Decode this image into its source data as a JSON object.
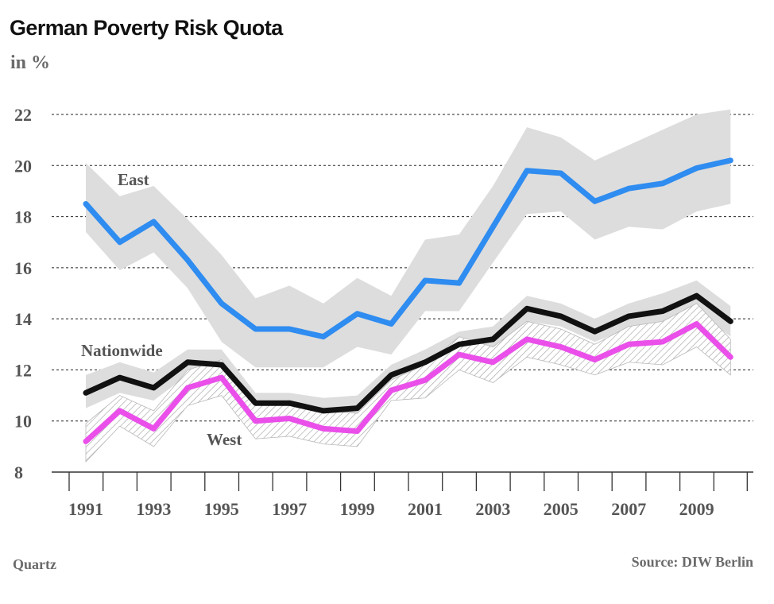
{
  "header": {
    "title": "German Poverty Risk Quota",
    "subtitle": "in %"
  },
  "footer": {
    "brand": "Quartz",
    "source": "Source: DIW Berlin"
  },
  "chart_data": {
    "type": "line",
    "title": "German Poverty Risk Quota",
    "subtitle": "in %",
    "x": [
      1991,
      1992,
      1993,
      1994,
      1995,
      1996,
      1997,
      1998,
      1999,
      2000,
      2001,
      2002,
      2003,
      2004,
      2005,
      2006,
      2007,
      2008,
      2009,
      2010
    ],
    "xtick_labels": [
      "1991",
      "1993",
      "1995",
      "1997",
      "1999",
      "2001",
      "2003",
      "2005",
      "2007",
      "2009"
    ],
    "ylim": [
      8,
      22
    ],
    "yticks": [
      8,
      10,
      12,
      14,
      16,
      18,
      20,
      22
    ],
    "grid": true,
    "series": [
      {
        "name": "East",
        "color": "#2f8cf0",
        "values": [
          18.5,
          17.0,
          17.8,
          16.3,
          14.6,
          13.6,
          13.6,
          13.3,
          14.2,
          13.8,
          15.5,
          15.4,
          17.6,
          19.8,
          19.7,
          18.6,
          19.1,
          19.3,
          19.9,
          20.2
        ],
        "lower": [
          17.4,
          15.9,
          16.6,
          15.2,
          13.1,
          12.1,
          12.1,
          12.1,
          12.9,
          12.6,
          14.3,
          14.3,
          16.2,
          18.1,
          18.2,
          17.1,
          17.6,
          17.5,
          18.2,
          18.5
        ],
        "upper": [
          20.1,
          18.8,
          19.2,
          17.9,
          16.5,
          14.8,
          15.3,
          14.6,
          15.6,
          14.9,
          17.1,
          17.3,
          19.2,
          21.5,
          21.1,
          20.2,
          20.8,
          21.4,
          22.0,
          22.2
        ],
        "band_color": "#dddddd"
      },
      {
        "name": "Nationwide",
        "color": "#111111",
        "values": [
          11.1,
          11.7,
          11.3,
          12.3,
          12.2,
          10.7,
          10.7,
          10.4,
          10.5,
          11.8,
          12.3,
          13.0,
          13.2,
          14.4,
          14.1,
          13.5,
          14.1,
          14.3,
          14.9,
          13.9
        ],
        "lower": [
          10.5,
          11.1,
          10.8,
          11.8,
          11.8,
          10.3,
          10.3,
          10.0,
          10.1,
          11.4,
          11.9,
          12.6,
          12.8,
          13.9,
          13.7,
          13.1,
          13.6,
          13.8,
          14.3,
          13.3
        ],
        "upper": [
          11.8,
          12.3,
          11.9,
          12.8,
          12.8,
          11.1,
          11.1,
          10.9,
          11.0,
          12.2,
          12.8,
          13.5,
          13.7,
          14.9,
          14.6,
          14.0,
          14.6,
          15.0,
          15.5,
          14.5
        ],
        "band_color": "#dddddd"
      },
      {
        "name": "West",
        "color": "#ea4fea",
        "values": [
          9.2,
          10.4,
          9.7,
          11.3,
          11.7,
          10.0,
          10.1,
          9.7,
          9.6,
          11.2,
          11.6,
          12.6,
          12.3,
          13.2,
          12.9,
          12.4,
          13.0,
          13.1,
          13.8,
          12.5
        ],
        "lower": [
          8.4,
          9.8,
          9.0,
          10.6,
          11.0,
          9.3,
          9.4,
          9.1,
          9.0,
          10.8,
          10.9,
          12.0,
          11.5,
          12.5,
          12.2,
          11.8,
          12.3,
          12.2,
          12.9,
          11.8
        ],
        "upper": [
          9.9,
          11.0,
          10.4,
          12.0,
          12.4,
          10.6,
          10.8,
          10.4,
          10.3,
          11.6,
          12.2,
          13.3,
          12.9,
          13.9,
          13.6,
          13.0,
          13.7,
          13.9,
          14.6,
          13.2
        ],
        "band_color": "#999999"
      }
    ],
    "annotations": [
      {
        "text": "East",
        "near_series": "East",
        "at_x": 1992
      },
      {
        "text": "Nationwide",
        "near_series": "Nationwide",
        "at_x": 1992
      },
      {
        "text": "West",
        "near_series": "West",
        "at_x": 1996
      }
    ]
  }
}
